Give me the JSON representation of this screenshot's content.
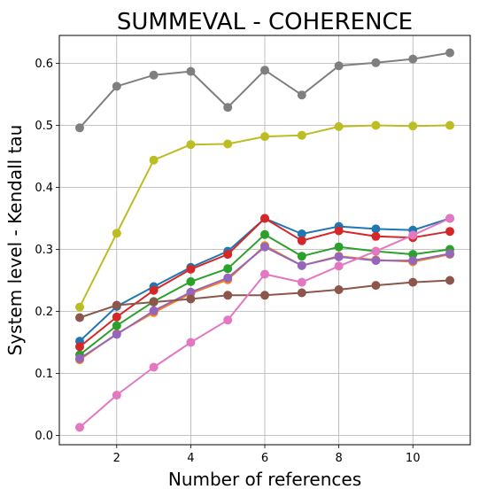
{
  "chart_data": {
    "type": "line",
    "title": "SUMMEVAL - COHERENCE",
    "xlabel": "Number of references",
    "ylabel": "System level - Kendall tau",
    "xlim": [
      0.45,
      11.55
    ],
    "ylim": [
      -0.015,
      0.645
    ],
    "xticks": [
      2,
      4,
      6,
      8,
      10
    ],
    "yticks": [
      0.0,
      0.1,
      0.2,
      0.3,
      0.4,
      0.5,
      0.6
    ],
    "grid": true,
    "x": [
      1,
      2,
      3,
      4,
      5,
      6,
      7,
      8,
      9,
      10,
      11
    ],
    "series": [
      {
        "color": "#1f77b4",
        "values": [
          0.152,
          0.208,
          0.24,
          0.271,
          0.297,
          0.35,
          0.325,
          0.337,
          0.333,
          0.331,
          0.35
        ]
      },
      {
        "color": "#ff7f0e",
        "values": [
          0.122,
          0.164,
          0.198,
          0.229,
          0.251,
          0.306,
          0.274,
          0.289,
          0.283,
          0.28,
          0.292
        ]
      },
      {
        "color": "#2ca02c",
        "values": [
          0.13,
          0.177,
          0.216,
          0.248,
          0.269,
          0.324,
          0.289,
          0.304,
          0.297,
          0.292,
          0.3
        ]
      },
      {
        "color": "#d62728",
        "values": [
          0.143,
          0.191,
          0.234,
          0.268,
          0.292,
          0.35,
          0.314,
          0.33,
          0.321,
          0.319,
          0.329
        ]
      },
      {
        "color": "#9467bd",
        "values": [
          0.124,
          0.163,
          0.201,
          0.231,
          0.254,
          0.304,
          0.274,
          0.288,
          0.282,
          0.282,
          0.293
        ]
      },
      {
        "color": "#8c564b",
        "values": [
          0.19,
          0.21,
          0.215,
          0.22,
          0.226,
          0.226,
          0.23,
          0.235,
          0.242,
          0.247,
          0.25
        ]
      },
      {
        "color": "#e377c2",
        "values": [
          0.013,
          0.065,
          0.11,
          0.15,
          0.186,
          0.26,
          0.247,
          0.273,
          0.297,
          0.323,
          0.35
        ]
      },
      {
        "color": "#7f7f7f",
        "values": [
          0.496,
          0.563,
          0.581,
          0.587,
          0.529,
          0.589,
          0.549,
          0.596,
          0.601,
          0.607,
          0.617
        ]
      },
      {
        "color": "#bcbd22",
        "values": [
          0.207,
          0.326,
          0.444,
          0.469,
          0.47,
          0.482,
          0.484,
          0.498,
          0.5,
          0.499,
          0.5
        ]
      }
    ]
  }
}
